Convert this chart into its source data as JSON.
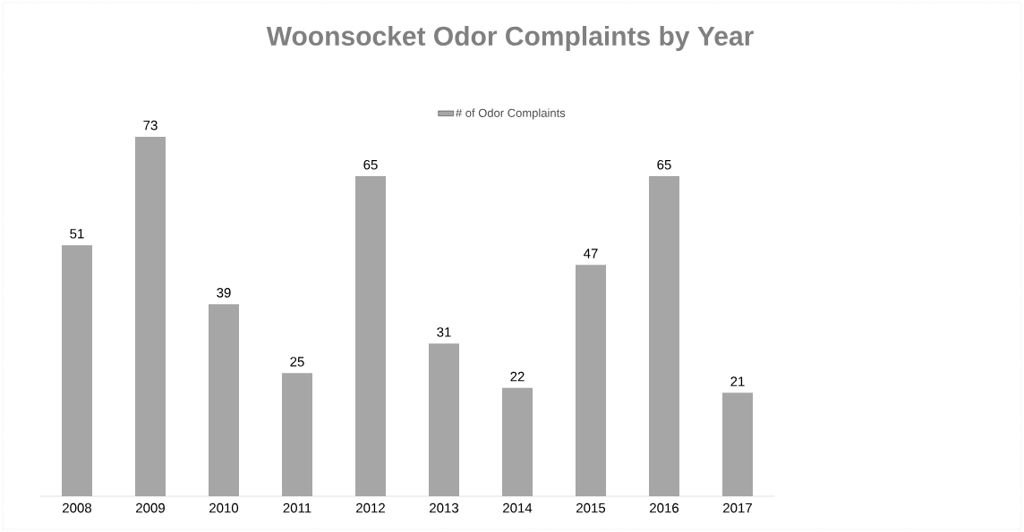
{
  "chart_data": {
    "type": "bar",
    "title": "Woonsocket Odor Complaints by Year",
    "categories": [
      "2008",
      "2009",
      "2010",
      "2011",
      "2012",
      "2013",
      "2014",
      "2015",
      "2016",
      "2017"
    ],
    "series": [
      {
        "name": "# of Odor Complaints",
        "color": "#a6a6a6",
        "values": [
          51,
          73,
          39,
          25,
          65,
          31,
          22,
          47,
          65,
          21
        ]
      }
    ],
    "data_labels": true,
    "legend": "top"
  }
}
